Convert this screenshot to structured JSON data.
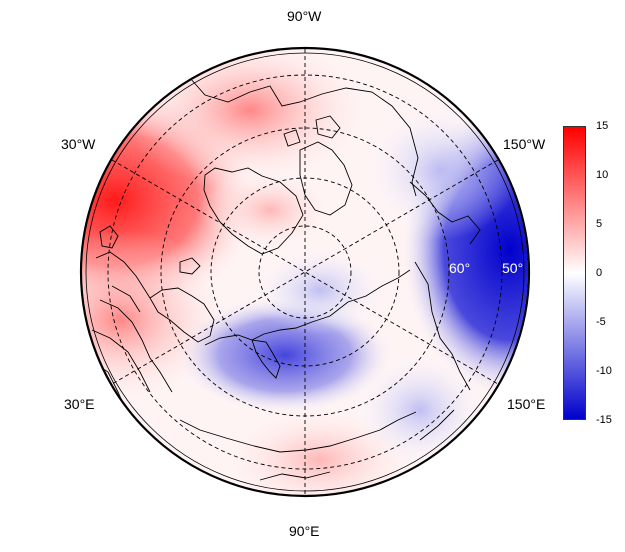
{
  "map": {
    "projection": "north-polar-stereographic",
    "longitude_labels": {
      "top": "90°W",
      "upper_left": "30°W",
      "upper_right": "150°W",
      "lower_left": "30°E",
      "lower_right": "150°E",
      "bottom": "90°E"
    },
    "latitude_labels": {
      "inner": "60°",
      "outer": "50°"
    },
    "graticule": {
      "latitude_circles": [
        80,
        70,
        60,
        50
      ],
      "meridian_step_deg": 60,
      "style": "dashed"
    }
  },
  "colorbar": {
    "colors": {
      "max": "#ff0000",
      "mid": "#ffffff",
      "min": "#0000cc"
    },
    "range": [
      -15,
      15
    ],
    "ticks": [
      "15",
      "10",
      "5",
      "0",
      "-5",
      "-10",
      "-15"
    ]
  }
}
